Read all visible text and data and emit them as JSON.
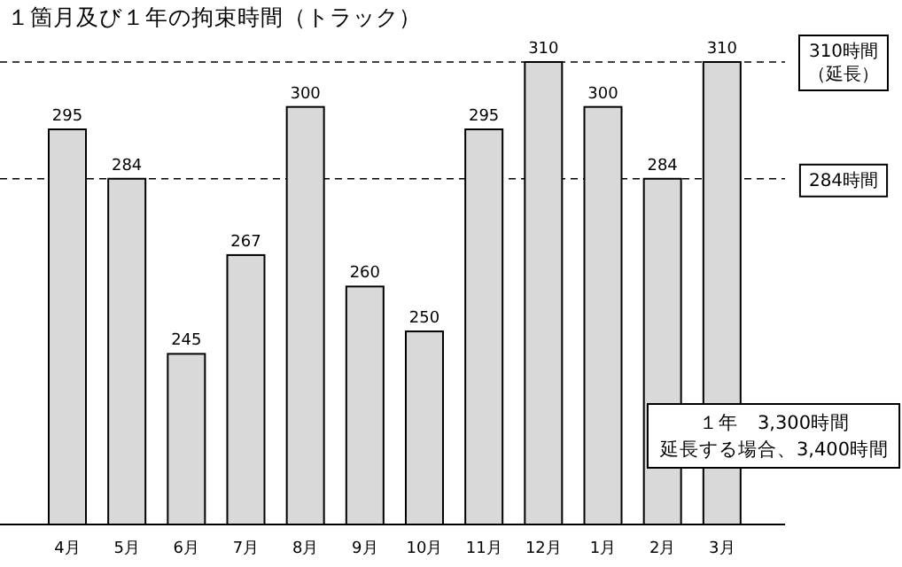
{
  "chart_data": {
    "type": "bar",
    "title": "１箇月及び１年の拘束時間（トラック）",
    "categories": [
      "4月",
      "5月",
      "6月",
      "7月",
      "8月",
      "9月",
      "10月",
      "11月",
      "12月",
      "1月",
      "2月",
      "3月"
    ],
    "values": [
      295,
      284,
      245,
      267,
      300,
      260,
      250,
      295,
      310,
      300,
      284,
      310
    ],
    "color": "#d9d9d9",
    "ylim": [
      207,
      310
    ],
    "data_labels": true,
    "ref_lines": [
      {
        "axis": "y",
        "value": 310,
        "label": "310時間（延長）",
        "line_style": "dashed"
      },
      {
        "axis": "y",
        "value": 284,
        "label": "284時間",
        "line_style": "dashed"
      }
    ],
    "annotations": [
      "１年　3,300時間",
      "延長する場合、3,400時間"
    ]
  }
}
